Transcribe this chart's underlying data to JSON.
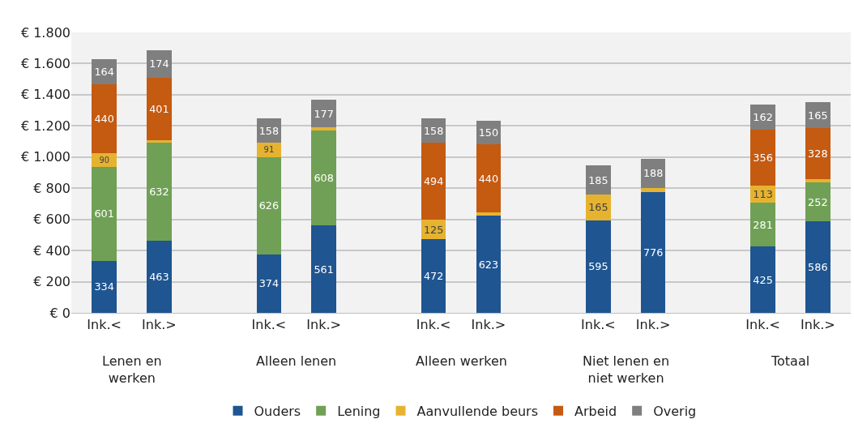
{
  "chart_data": {
    "type": "bar",
    "stacked": true,
    "categories": [
      "Ink.<",
      "Ink.>",
      "Ink.<",
      "Ink.>",
      "Ink.<",
      "Ink.>",
      "Ink.<",
      "Ink.>",
      "Ink.<",
      "Ink.>"
    ],
    "annotations": [
      "Lenen en werken",
      "Alleen lenen",
      "Alleen werken",
      "Niet lenen en niet werken",
      "Totaal"
    ],
    "series": [
      {
        "name": "Ouders",
        "color": "#1f5591",
        "values": [
          334,
          463,
          374,
          561,
          472,
          623,
          595,
          776,
          425,
          586
        ],
        "value_labels": [
          "334",
          "463",
          "374",
          "561",
          "472",
          "623",
          "595",
          "776",
          "425",
          "586"
        ]
      },
      {
        "name": "Lening",
        "color": "#70a055",
        "values": [
          601,
          632,
          626,
          608,
          null,
          null,
          null,
          null,
          281,
          252
        ],
        "value_labels": [
          "601",
          "632",
          "626",
          "608",
          null,
          null,
          null,
          null,
          "281",
          "252"
        ]
      },
      {
        "name": "Aanvullende beurs",
        "color": "#e6b331",
        "values": [
          90,
          15,
          91,
          20,
          125,
          20,
          165,
          25,
          113,
          20
        ],
        "value_labels": [
          "90",
          null,
          "91",
          null,
          "125",
          null,
          "165",
          null,
          "113",
          null
        ]
      },
      {
        "name": "Arbeid",
        "color": "#c55a11",
        "values": [
          440,
          401,
          null,
          null,
          494,
          440,
          null,
          null,
          356,
          328
        ],
        "value_labels": [
          "440",
          "401",
          null,
          null,
          "494",
          "440",
          null,
          null,
          "356",
          "328"
        ]
      },
      {
        "name": "Overig",
        "color": "#7f7f7f",
        "values": [
          164,
          174,
          158,
          177,
          158,
          150,
          185,
          188,
          162,
          165
        ],
        "value_labels": [
          "164",
          "174",
          "158",
          "177",
          "158",
          "150",
          "185",
          "188",
          "162",
          "165"
        ]
      }
    ],
    "ylim": [
      0,
      1800
    ],
    "yticks": [
      {
        "value": 0,
        "label": "€ 0"
      },
      {
        "value": 200,
        "label": "€ 200"
      },
      {
        "value": 400,
        "label": "€ 400"
      },
      {
        "value": 600,
        "label": "€ 600"
      },
      {
        "value": 800,
        "label": "€ 800"
      },
      {
        "value": 1000,
        "label": "€ 1.000"
      },
      {
        "value": 1200,
        "label": "€ 1.200"
      },
      {
        "value": 1400,
        "label": "€ 1.400"
      },
      {
        "value": 1600,
        "label": "€ 1.600"
      },
      {
        "value": 1800,
        "label": "€ 1.800"
      }
    ],
    "grid": "y",
    "legend": "bottom"
  }
}
